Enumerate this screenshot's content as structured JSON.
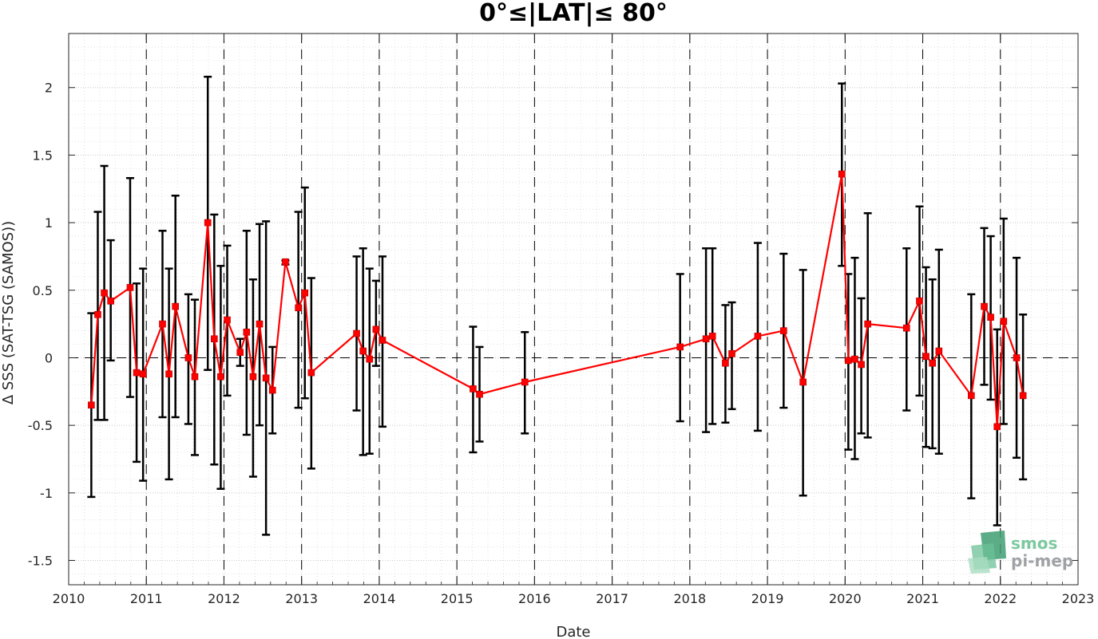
{
  "chart_data": {
    "type": "line",
    "title": "0°≤|LAT|≤ 80°",
    "xlabel": "Date",
    "ylabel": "Δ SSS (SAT-TSG (SAMOS))",
    "xlim": [
      2010,
      2023
    ],
    "ylim": [
      -1.68,
      2.4
    ],
    "x_ticks": [
      "2010",
      "2011",
      "2012",
      "2013",
      "2014",
      "2015",
      "2016",
      "2017",
      "2018",
      "2019",
      "2020",
      "2021",
      "2022",
      "2023"
    ],
    "y_ticks": [
      "-1.5",
      "-1",
      "-0.5",
      "0",
      "0.5",
      "1",
      "1.5",
      "2"
    ],
    "grid": true,
    "zero_line": 0,
    "year_separators": [
      "2011",
      "2012",
      "2013",
      "2014",
      "2015",
      "2016",
      "2017",
      "2018",
      "2019",
      "2020",
      "2021",
      "2022"
    ],
    "colors": {
      "series": "#ff0000",
      "errorbars": "#000000",
      "logo": "#5fb88a"
    },
    "series": [
      {
        "x": [
          "2010-04",
          "2010-05",
          "2010-06",
          "2010-07",
          "2010-10",
          "2010-11",
          "2010-12",
          "2011-03",
          "2011-04",
          "2011-05",
          "2011-07",
          "2011-08",
          "2011-10",
          "2011-11",
          "2011-12",
          "2012-01",
          "2012-03",
          "2012-04",
          "2012-05",
          "2012-06",
          "2012-07",
          "2012-08",
          "2012-10",
          "2012-12",
          "2013-01",
          "2013-02",
          "2013-09",
          "2013-10",
          "2013-11",
          "2013-12",
          "2014-01",
          "2015-03",
          "2015-04",
          "2015-11",
          "2017-11",
          "2018-03",
          "2018-04",
          "2018-06",
          "2018-07",
          "2018-11",
          "2019-03",
          "2019-06",
          "2019-12",
          "2020-01",
          "2020-02",
          "2020-03",
          "2020-04",
          "2020-10",
          "2020-12",
          "2021-01",
          "2021-02",
          "2021-03",
          "2021-08",
          "2021-10",
          "2021-11",
          "2021-12",
          "2022-01",
          "2022-03",
          "2022-04"
        ],
        "y": [
          -0.35,
          0.32,
          0.48,
          0.42,
          0.52,
          -0.11,
          -0.12,
          0.25,
          -0.12,
          0.38,
          0.0,
          -0.14,
          1.0,
          0.14,
          -0.14,
          0.28,
          0.04,
          0.19,
          -0.14,
          0.25,
          -0.15,
          -0.24,
          0.71,
          0.37,
          0.48,
          -0.11,
          0.18,
          0.05,
          -0.01,
          0.21,
          0.13,
          -0.23,
          -0.27,
          -0.18,
          0.08,
          0.14,
          0.16,
          -0.04,
          0.03,
          0.16,
          0.2,
          -0.18,
          1.36,
          -0.02,
          -0.01,
          -0.05,
          0.25,
          0.22,
          0.42,
          0.01,
          -0.04,
          0.05,
          -0.28,
          0.38,
          0.3,
          -0.51,
          0.27,
          0.0,
          -0.28
        ],
        "err_low": [
          -1.03,
          -0.46,
          -0.46,
          -0.02,
          -0.29,
          -0.77,
          -0.91,
          -0.44,
          -0.9,
          -0.44,
          -0.49,
          -0.72,
          -0.09,
          -0.79,
          -0.97,
          -0.28,
          -0.06,
          -0.57,
          -0.88,
          -0.5,
          -1.31,
          -0.56,
          0.69,
          -0.37,
          -0.3,
          -0.82,
          -0.39,
          -0.72,
          -0.71,
          -0.06,
          -0.51,
          -0.7,
          -0.62,
          -0.56,
          -0.47,
          -0.55,
          -0.49,
          -0.48,
          -0.38,
          -0.54,
          -0.37,
          -1.02,
          0.68,
          -0.68,
          -0.75,
          -0.56,
          -0.59,
          -0.39,
          -0.28,
          -0.66,
          -0.67,
          -0.71,
          -1.04,
          -0.2,
          -0.31,
          -1.24,
          -0.49,
          -0.74,
          -0.9
        ],
        "err_high": [
          0.33,
          1.08,
          1.42,
          0.87,
          1.33,
          0.55,
          0.66,
          0.94,
          0.66,
          1.2,
          0.47,
          0.43,
          2.08,
          1.06,
          0.68,
          0.83,
          0.14,
          0.94,
          0.58,
          0.99,
          1.01,
          0.08,
          0.72,
          1.08,
          1.26,
          0.59,
          0.75,
          0.81,
          0.66,
          0.57,
          0.75,
          0.23,
          0.08,
          0.19,
          0.62,
          0.81,
          0.81,
          0.39,
          0.41,
          0.85,
          0.77,
          0.65,
          2.03,
          0.62,
          0.74,
          0.44,
          1.07,
          0.81,
          1.12,
          0.67,
          0.58,
          0.8,
          0.47,
          0.96,
          0.9,
          0.21,
          1.03,
          0.74,
          0.32
        ]
      }
    ]
  },
  "logo": {
    "line1": "smos",
    "line2": "pi-mep"
  }
}
